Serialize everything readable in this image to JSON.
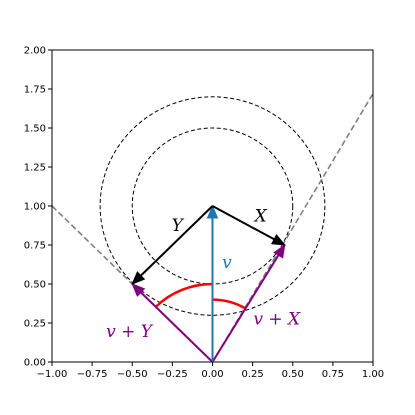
{
  "chart_data": {
    "type": "vector_diagram",
    "title": "",
    "xlabel": "",
    "ylabel": "",
    "xlim": [
      -1.0,
      1.0
    ],
    "ylim": [
      0.0,
      2.0
    ],
    "xticks": [
      "−1.00",
      "−0.75",
      "−0.50",
      "−0.25",
      "0.00",
      "0.25",
      "0.50",
      "0.75",
      "1.00"
    ],
    "xtick_values": [
      -1.0,
      -0.75,
      -0.5,
      -0.25,
      0.0,
      0.25,
      0.5,
      0.75,
      1.0
    ],
    "yticks": [
      "0.00",
      "0.25",
      "0.50",
      "0.75",
      "1.00",
      "1.25",
      "1.50",
      "1.75",
      "2.00"
    ],
    "ytick_values": [
      0.0,
      0.25,
      0.5,
      0.75,
      1.0,
      1.25,
      1.5,
      1.75,
      2.0
    ],
    "grid": false,
    "circles": [
      {
        "center": [
          0.0,
          1.0
        ],
        "radius": 0.5,
        "style": "dashed",
        "color": "#000000"
      },
      {
        "center": [
          0.0,
          1.0
        ],
        "radius": 0.7,
        "style": "dashed",
        "color": "#000000"
      }
    ],
    "tangent_lines": [
      {
        "from": [
          -1.0,
          1.0
        ],
        "to": [
          0.0,
          0.0
        ],
        "style": "dashed",
        "color": "#808080"
      },
      {
        "from": [
          0.0,
          0.0
        ],
        "to": [
          1.0,
          1.72
        ],
        "style": "dashed",
        "color": "#808080"
      }
    ],
    "vectors": [
      {
        "name": "v",
        "label": "v",
        "from": [
          0.0,
          0.0
        ],
        "to": [
          0.0,
          1.0
        ],
        "color": "#1f77b4",
        "label_at": [
          0.09,
          0.63
        ]
      },
      {
        "name": "X",
        "label": "X",
        "from": [
          0.0,
          1.0
        ],
        "to": [
          0.45,
          0.75
        ],
        "color": "#000000",
        "label_at": [
          0.3,
          0.93
        ]
      },
      {
        "name": "Y",
        "label": "Y",
        "from": [
          0.0,
          1.0
        ],
        "to": [
          -0.5,
          0.5
        ],
        "color": "#000000",
        "label_at": [
          -0.22,
          0.87
        ]
      },
      {
        "name": "v+X",
        "label": "v + X",
        "from": [
          0.0,
          0.0
        ],
        "to": [
          0.45,
          0.75
        ],
        "color": "#800080",
        "label_at": [
          0.4,
          0.27
        ]
      },
      {
        "name": "v+Y",
        "label": "v + Y",
        "from": [
          0.0,
          0.0
        ],
        "to": [
          -0.5,
          0.5
        ],
        "color": "#800080",
        "label_at": [
          -0.52,
          0.19
        ]
      }
    ],
    "angle_arcs": [
      {
        "center": [
          0.0,
          0.0
        ],
        "radius": 0.5,
        "from_deg": 90,
        "to_deg": 135,
        "color": "#ff0000"
      },
      {
        "center": [
          0.0,
          0.0
        ],
        "radius": 0.4,
        "from_deg": 59,
        "to_deg": 90,
        "color": "#ff0000"
      }
    ]
  }
}
